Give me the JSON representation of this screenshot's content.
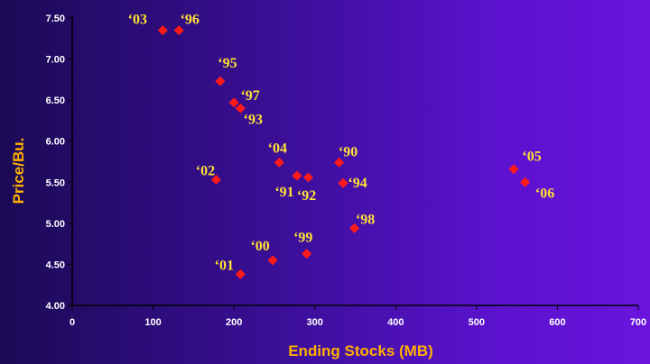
{
  "chart_data": {
    "type": "scatter",
    "title": "",
    "xlabel": "Ending Stocks (MB)",
    "ylabel": "Price/Bu.",
    "xlim": [
      0,
      700
    ],
    "ylim": [
      4.0,
      7.5
    ],
    "x_ticks": [
      "0",
      "100",
      "200",
      "300",
      "400",
      "500",
      "600",
      "700"
    ],
    "y_ticks": [
      "4.00",
      "4.50",
      "5.00",
      "5.50",
      "6.00",
      "6.50",
      "7.00",
      "7.50"
    ],
    "grid": false,
    "legend": "none",
    "marker": "diamond",
    "marker_color": "#ff1a1a",
    "label_color": "#ffe135",
    "title_color": "#ffb000",
    "points": [
      {
        "label": "‘03",
        "x": 112,
        "y": 7.35
      },
      {
        "label": "‘96",
        "x": 132,
        "y": 7.35
      },
      {
        "label": "‘95",
        "x": 183,
        "y": 6.73
      },
      {
        "label": "‘97",
        "x": 200,
        "y": 6.47
      },
      {
        "label": "‘93",
        "x": 208,
        "y": 6.4
      },
      {
        "label": "‘02",
        "x": 178,
        "y": 5.53
      },
      {
        "label": "‘04",
        "x": 256,
        "y": 5.74
      },
      {
        "label": "‘91",
        "x": 278,
        "y": 5.58
      },
      {
        "label": "‘92",
        "x": 292,
        "y": 5.56
      },
      {
        "label": "‘90",
        "x": 330,
        "y": 5.74
      },
      {
        "label": "‘94",
        "x": 335,
        "y": 5.49
      },
      {
        "label": "‘05",
        "x": 546,
        "y": 5.66
      },
      {
        "label": "‘06",
        "x": 560,
        "y": 5.5
      },
      {
        "label": "‘98",
        "x": 349,
        "y": 4.94
      },
      {
        "label": "‘99",
        "x": 290,
        "y": 4.63
      },
      {
        "label": "‘00",
        "x": 248,
        "y": 4.55
      },
      {
        "label": "‘01",
        "x": 208,
        "y": 4.38
      }
    ]
  }
}
